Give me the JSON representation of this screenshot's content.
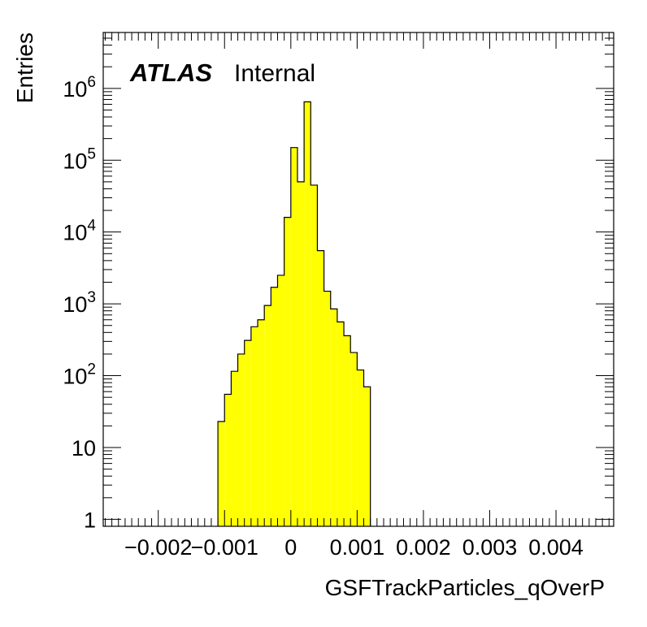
{
  "chart_data": {
    "type": "bar",
    "title": "",
    "xlabel": "GSFTrackParticles_qOverP",
    "ylabel": "Entries",
    "yscale": "log",
    "xlim": [
      -0.00283,
      0.00487
    ],
    "ylim": [
      0.8,
      6000000
    ],
    "fill_color": "#ffff00",
    "line_color": "#000000",
    "grid": false,
    "legend": "none",
    "experiment_label": "ATLAS",
    "status_label": "Internal",
    "x_tick_labels": [
      {
        "value": -0.002,
        "label": "−0.002"
      },
      {
        "value": -0.001,
        "label": "−0.001"
      },
      {
        "value": 0.0,
        "label": "0"
      },
      {
        "value": 0.001,
        "label": "0.001"
      },
      {
        "value": 0.002,
        "label": "0.002"
      },
      {
        "value": 0.003,
        "label": "0.003"
      },
      {
        "value": 0.004,
        "label": "0.004"
      }
    ],
    "y_tick_labels": [
      {
        "value": 1,
        "base": "1",
        "exp": ""
      },
      {
        "value": 10,
        "base": "10",
        "exp": ""
      },
      {
        "value": 100,
        "base": "10",
        "exp": "2"
      },
      {
        "value": 1000,
        "base": "10",
        "exp": "3"
      },
      {
        "value": 10000,
        "base": "10",
        "exp": "4"
      },
      {
        "value": 100000,
        "base": "10",
        "exp": "5"
      },
      {
        "value": 1000000,
        "base": "10",
        "exp": "6"
      }
    ],
    "bins": [
      {
        "low": -0.0011,
        "high": -0.001,
        "count": 23
      },
      {
        "low": -0.001,
        "high": -0.0009,
        "count": 55
      },
      {
        "low": -0.0009,
        "high": -0.0008,
        "count": 115
      },
      {
        "low": -0.0008,
        "high": -0.0007,
        "count": 200
      },
      {
        "low": -0.0007,
        "high": -0.0006,
        "count": 310
      },
      {
        "low": -0.0006,
        "high": -0.0005,
        "count": 480
      },
      {
        "low": -0.0005,
        "high": -0.0004,
        "count": 600
      },
      {
        "low": -0.0004,
        "high": -0.0003,
        "count": 950
      },
      {
        "low": -0.0003,
        "high": -0.0002,
        "count": 1700
      },
      {
        "low": -0.0002,
        "high": -0.0001,
        "count": 2500
      },
      {
        "low": -0.0001,
        "high": 0.0,
        "count": 16000
      },
      {
        "low": 0.0,
        "high": 0.0001,
        "count": 150000
      },
      {
        "low": 0.0001,
        "high": 0.0002,
        "count": 50000
      },
      {
        "low": 0.0002,
        "high": 0.0003,
        "count": 650000
      },
      {
        "low": 0.0003,
        "high": 0.0004,
        "count": 45000
      },
      {
        "low": 0.0004,
        "high": 0.0005,
        "count": 5500
      },
      {
        "low": 0.0005,
        "high": 0.0006,
        "count": 1500
      },
      {
        "low": 0.0006,
        "high": 0.0007,
        "count": 850
      },
      {
        "low": 0.0007,
        "high": 0.0008,
        "count": 560
      },
      {
        "low": 0.0008,
        "high": 0.0009,
        "count": 360
      },
      {
        "low": 0.0009,
        "high": 0.001,
        "count": 210
      },
      {
        "low": 0.001,
        "high": 0.0011,
        "count": 120
      },
      {
        "low": 0.0011,
        "high": 0.0012,
        "count": 70
      }
    ]
  }
}
